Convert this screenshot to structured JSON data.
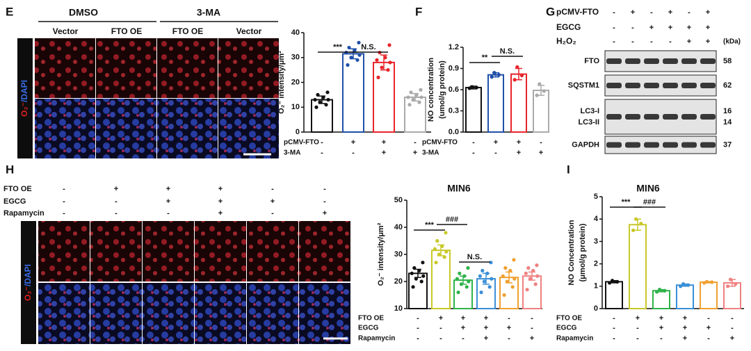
{
  "panel_e": {
    "label": "E",
    "groups": [
      "DMSO",
      "3-MA"
    ],
    "columns": [
      "Vector",
      "FTO OE",
      "FTO OE",
      "Vector"
    ],
    "stain": [
      "O₂⁻",
      "/DAPI"
    ]
  },
  "panel_g": {
    "label": "G",
    "rows": [
      {
        "name": "pCMV-FTO",
        "signs": [
          "-",
          "+",
          "-",
          "+",
          "-",
          "+"
        ]
      },
      {
        "name": "EGCG",
        "signs": [
          "-",
          "-",
          "+",
          "+",
          "+",
          "+"
        ]
      },
      {
        "name": "H₂O₂",
        "signs": [
          "-",
          "-",
          "-",
          "-",
          "+",
          "+"
        ]
      }
    ],
    "unit": "(kDa)",
    "bands": [
      {
        "name": "FTO",
        "kda": 58
      },
      {
        "name": "SQSTM1",
        "kda": 62
      },
      {
        "name": [
          "LC3-I",
          "LC3-II"
        ],
        "kda": [
          16,
          14
        ]
      },
      {
        "name": "GAPDH",
        "kda": 37
      }
    ]
  },
  "panel_h": {
    "label": "H",
    "rows": [
      {
        "name": "FTO OE",
        "signs": [
          "-",
          "+",
          "+",
          "+",
          "-",
          "-"
        ]
      },
      {
        "name": "EGCG",
        "signs": [
          "-",
          "-",
          "+",
          "+",
          "+",
          "-"
        ]
      },
      {
        "name": "Rapamycin",
        "signs": [
          "-",
          "-",
          "-",
          "+",
          "-",
          "+"
        ]
      }
    ],
    "stain": [
      "O₂⁻",
      "/DAPI"
    ]
  },
  "chart_data": [
    {
      "type": "bar",
      "ylabel": [
        "O₂⁻ intensity/μm²"
      ],
      "categories": [
        null,
        null,
        null,
        null
      ],
      "values": [
        13,
        31.5,
        28,
        14
      ],
      "errors": [
        1.5,
        2,
        3,
        1.5
      ],
      "points": [
        [
          10,
          11,
          12,
          13,
          13,
          14,
          15,
          16
        ],
        [
          27,
          29,
          30,
          31,
          32,
          33,
          34,
          36
        ],
        [
          22,
          25,
          26,
          28,
          29,
          30,
          32,
          35
        ],
        [
          11,
          12,
          13,
          14,
          14,
          15,
          16,
          17
        ]
      ],
      "colors": [
        "#111111",
        "#1f4fa8",
        "#e8242a",
        "#aaaaaa"
      ],
      "ylim": [
        0,
        40
      ],
      "yticks": [
        0,
        10,
        20,
        30,
        40
      ],
      "annotations": [
        "***",
        "N.S."
      ],
      "rows": [
        {
          "name": "pCMV-FTO",
          "signs": [
            "-",
            "+",
            "+",
            "-"
          ]
        },
        {
          "name": "3-MA",
          "signs": [
            "-",
            "-",
            "+",
            "+"
          ]
        }
      ]
    },
    {
      "type": "bar",
      "panel": "F",
      "ylabel": [
        "NO concentration",
        "(umol/g protein)"
      ],
      "categories": [
        null,
        null,
        null,
        null
      ],
      "values": [
        0.63,
        0.81,
        0.82,
        0.59
      ],
      "errors": [
        0.02,
        0.03,
        0.08,
        0.07
      ],
      "points": [
        [
          0.62,
          0.63,
          0.64
        ],
        [
          0.78,
          0.81,
          0.84
        ],
        [
          0.74,
          0.8,
          0.92
        ],
        [
          0.52,
          0.58,
          0.68
        ]
      ],
      "colors": [
        "#111111",
        "#1f4fa8",
        "#e8242a",
        "#aaaaaa"
      ],
      "ylim": [
        0,
        1.2
      ],
      "yticks": [
        {
          "value": 0,
          "label": "0.0"
        },
        0.3,
        0.6,
        0.9,
        1.2
      ],
      "annotations": [
        "**",
        "N.S."
      ],
      "rows": [
        {
          "name": "pCMV-FTO",
          "signs": [
            "-",
            "+",
            "+",
            "-"
          ]
        },
        {
          "name": "3-MA",
          "signs": [
            "-",
            "-",
            "+",
            "+"
          ]
        }
      ]
    },
    {
      "type": "bar",
      "title": "MIN6",
      "ylabel": [
        "O₂⁻ intensity/μm²"
      ],
      "categories": [
        null,
        null,
        null,
        null,
        null,
        null
      ],
      "values": [
        23,
        31.5,
        20.5,
        21,
        21.5,
        22
      ],
      "errors": [
        1.5,
        2,
        1.5,
        2,
        2,
        1.5
      ],
      "points": [
        [
          18,
          20,
          21,
          22,
          23,
          24,
          25,
          27
        ],
        [
          27,
          29,
          30,
          31,
          32,
          33,
          35,
          38
        ],
        [
          16,
          18,
          19,
          20,
          21,
          22,
          23,
          25
        ],
        [
          16,
          18,
          20,
          21,
          22,
          23,
          24,
          27
        ],
        [
          15,
          18,
          20,
          21,
          22,
          24,
          25,
          28
        ],
        [
          17,
          19,
          21,
          22,
          23,
          24,
          25,
          26
        ]
      ],
      "colors": [
        "#111111",
        "#c8c82a",
        "#2fb34a",
        "#3a8fd8",
        "#f0a030",
        "#f08080"
      ],
      "ylim": [
        10,
        50
      ],
      "yticks": [
        10,
        20,
        30,
        40,
        50
      ],
      "annotations": [
        "***",
        "###",
        "N.S."
      ],
      "rows": [
        {
          "name": "FTO OE",
          "signs": [
            "-",
            "+",
            "+",
            "+",
            "-",
            "-"
          ]
        },
        {
          "name": "EGCG",
          "signs": [
            "-",
            "-",
            "+",
            "+",
            "+",
            "-"
          ]
        },
        {
          "name": "Rapamycin",
          "signs": [
            "-",
            "-",
            "-",
            "+",
            "-",
            "+"
          ]
        }
      ]
    },
    {
      "type": "bar",
      "panel": "I",
      "title": "MIN6",
      "ylabel": [
        "NO  Concentration",
        "(μmol/g protein)"
      ],
      "categories": [
        null,
        null,
        null,
        null,
        null,
        null
      ],
      "values": [
        1.2,
        3.75,
        0.8,
        1.05,
        1.18,
        1.15
      ],
      "errors": [
        0.05,
        0.25,
        0.05,
        0.05,
        0.03,
        0.15
      ],
      "points": [
        [
          1.15,
          1.2,
          1.25
        ],
        [
          3.5,
          3.8,
          4.0
        ],
        [
          0.75,
          0.8,
          0.85
        ],
        [
          1.0,
          1.05,
          1.1
        ],
        [
          1.15,
          1.18,
          1.2
        ],
        [
          1.0,
          1.1,
          1.3
        ]
      ],
      "colors": [
        "#111111",
        "#c8c82a",
        "#2fb34a",
        "#3a8fd8",
        "#f0a030",
        "#f08080"
      ],
      "ylim": [
        0,
        5
      ],
      "yticks": [
        0,
        1,
        2,
        3,
        4,
        5
      ],
      "annotations": [
        "***",
        "###"
      ],
      "rows": [
        {
          "name": "FTO OE",
          "signs": [
            "-",
            "+",
            "+",
            "+",
            "-",
            "-"
          ]
        },
        {
          "name": "EGCG",
          "signs": [
            "-",
            "-",
            "+",
            "+",
            "+",
            "-"
          ]
        },
        {
          "name": "Rapamycin",
          "signs": [
            "-",
            "-",
            "-",
            "+",
            "-",
            "+"
          ]
        }
      ]
    }
  ]
}
